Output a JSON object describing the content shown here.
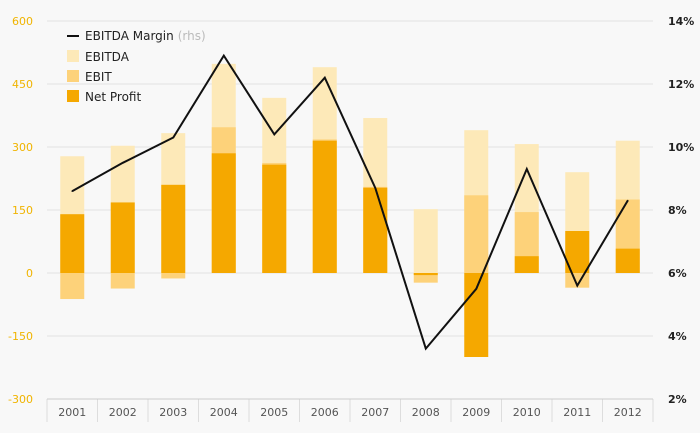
{
  "chart_data": {
    "type": "bar",
    "categories": [
      "2001",
      "2002",
      "2003",
      "2004",
      "2005",
      "2006",
      "2007",
      "2008",
      "2009",
      "2010",
      "2011",
      "2012"
    ],
    "series": [
      {
        "name": "EBITDA",
        "type": "bar",
        "axis": "left",
        "color": "#fde9b8",
        "values": [
          278,
          303,
          333,
          498,
          417,
          490,
          369,
          152,
          340,
          307,
          240,
          315
        ]
      },
      {
        "name": "EBIT",
        "type": "bar",
        "axis": "left",
        "color": "#fdd27a",
        "values": [
          -62,
          -37,
          -13,
          347,
          262,
          318,
          205,
          -23,
          185,
          145,
          -35,
          175
        ]
      },
      {
        "name": "Net Profit",
        "type": "bar",
        "axis": "left",
        "color": "#f5a800",
        "values": [
          140,
          168,
          210,
          285,
          258,
          315,
          203,
          -5,
          -200,
          40,
          100,
          58
        ]
      },
      {
        "name": "EBITDA Margin",
        "name_suffix": "(rhs)",
        "type": "line",
        "axis": "right",
        "color": "#111111",
        "values": [
          8.6,
          9.5,
          10.3,
          12.9,
          10.4,
          12.2,
          8.7,
          3.6,
          5.5,
          9.3,
          5.6,
          8.3
        ]
      }
    ],
    "left_axis": {
      "min": -300,
      "max": 600,
      "ticks": [
        600,
        450,
        300,
        150,
        0,
        -150,
        -300
      ],
      "tick_labels": [
        "600",
        "450",
        "300",
        "150",
        "0",
        "-150",
        "-300"
      ],
      "color": "#f0b400"
    },
    "right_axis": {
      "min": 2,
      "max": 14,
      "ticks": [
        14,
        12,
        10,
        8,
        6,
        4,
        2
      ],
      "tick_labels": [
        "14%",
        "12%",
        "10%",
        "8%",
        "6%",
        "4%",
        "2%"
      ]
    },
    "grid": true,
    "legend_position": "top-left",
    "title": "",
    "xlabel": "",
    "ylabel": ""
  }
}
